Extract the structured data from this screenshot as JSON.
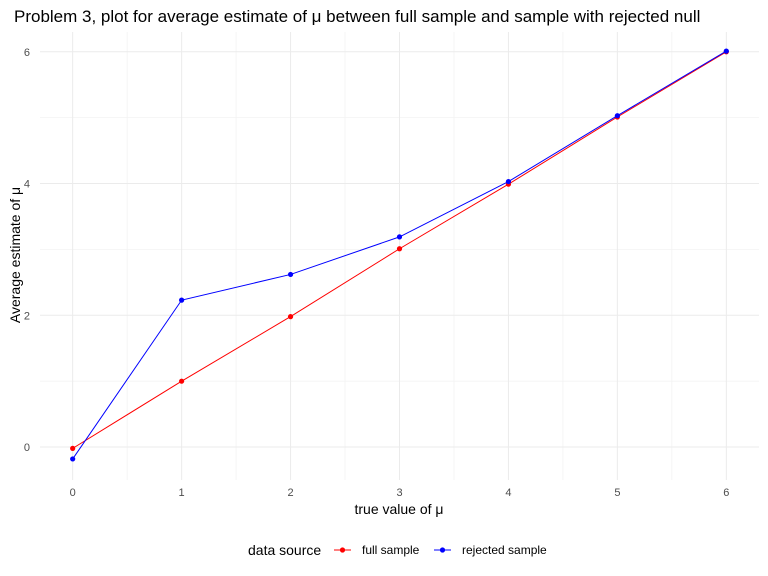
{
  "chart_data": {
    "type": "line",
    "title": "Problem 3, plot for average estimate of μ between full sample and sample with rejected null",
    "xlabel": "true value of μ",
    "ylabel": "Average estimate of μ",
    "x": [
      0,
      1,
      2,
      3,
      4,
      5,
      6
    ],
    "xlim": [
      -0.3,
      6.3
    ],
    "ylim": [
      -0.5,
      6.3
    ],
    "xticks": [
      "0",
      "1",
      "2",
      "3",
      "4",
      "5",
      "6"
    ],
    "yticks": [
      "0",
      "2",
      "4",
      "6"
    ],
    "grid": true,
    "legend": {
      "title": "data source",
      "position": "bottom"
    },
    "series": [
      {
        "name": "full sample",
        "color": "#ff0000",
        "values": [
          -0.02,
          1.0,
          1.98,
          3.01,
          3.99,
          5.01,
          6.0
        ]
      },
      {
        "name": "rejected sample",
        "color": "#0000ff",
        "values": [
          -0.18,
          2.23,
          2.62,
          3.19,
          4.03,
          5.03,
          6.01
        ]
      }
    ]
  }
}
